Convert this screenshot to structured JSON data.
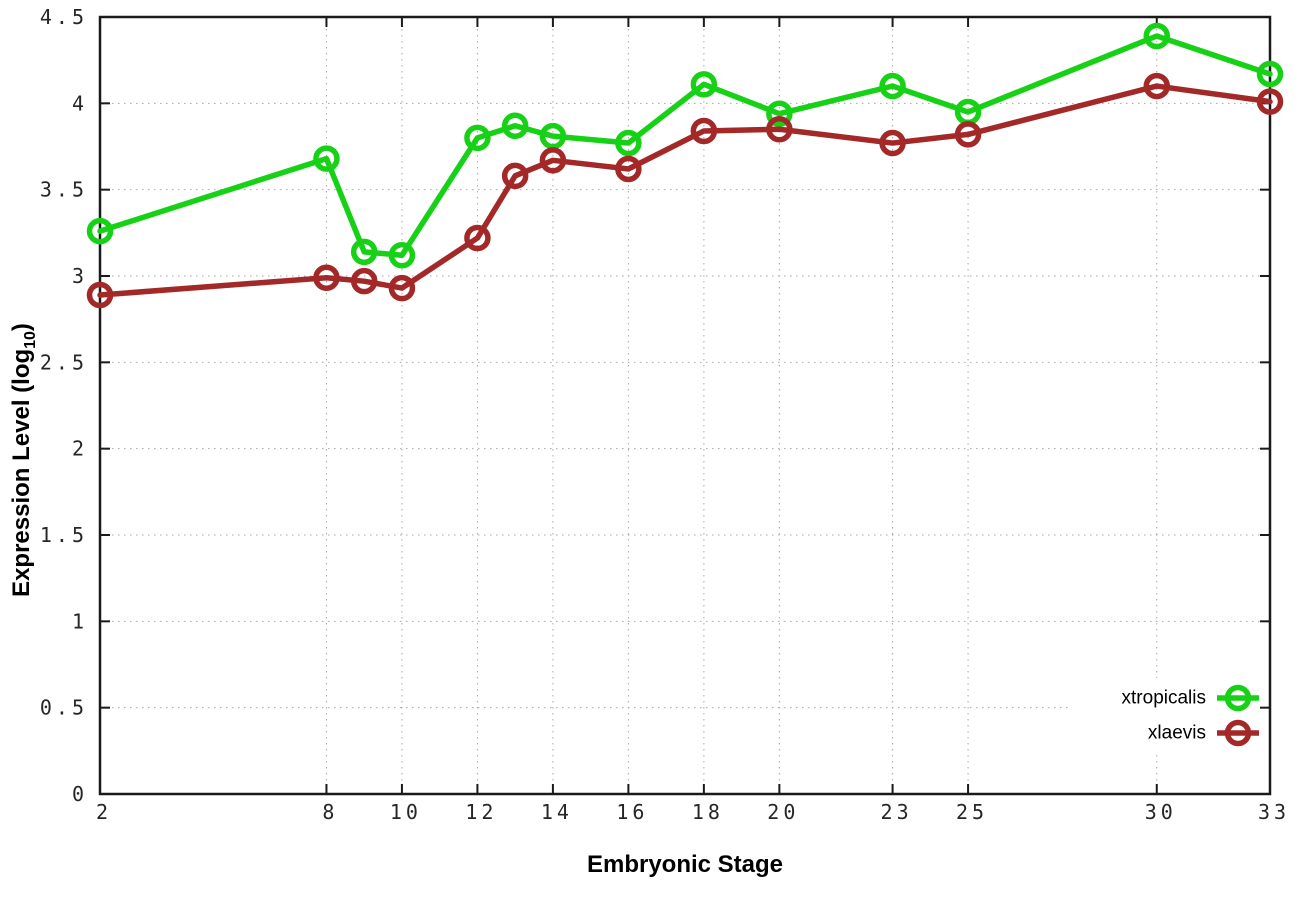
{
  "chart_data": {
    "type": "line",
    "title": "",
    "xlabel": "Embryonic Stage",
    "ylabel": "Expression Level (log10)",
    "ylabel_parts": {
      "prefix": "Expression Level (log",
      "sub": "10",
      "suffix": ")"
    },
    "xlim": [
      2,
      33
    ],
    "ylim": [
      0,
      4.5
    ],
    "xticks": [
      2,
      8,
      10,
      12,
      14,
      16,
      18,
      20,
      23,
      25,
      30,
      33
    ],
    "yticks": [
      0,
      0.5,
      1,
      1.5,
      2,
      2.5,
      3,
      3.5,
      4,
      4.5
    ],
    "grid": true,
    "legend_position": "bottom-right-inside",
    "x": [
      2,
      8,
      9,
      10,
      12,
      13,
      14,
      16,
      18,
      20,
      23,
      25,
      30,
      33
    ],
    "series": [
      {
        "name": "xtropicalis",
        "color": "#17d117",
        "values": [
          3.26,
          3.68,
          3.14,
          3.12,
          3.8,
          3.87,
          3.81,
          3.77,
          4.11,
          3.94,
          4.1,
          3.95,
          4.39,
          4.17
        ]
      },
      {
        "name": "xlaevis",
        "color": "#a32929",
        "values": [
          2.89,
          2.99,
          2.97,
          2.93,
          3.22,
          3.58,
          3.67,
          3.62,
          3.84,
          3.85,
          3.77,
          3.82,
          4.1,
          4.01
        ]
      }
    ],
    "colors": {
      "grid": "#a8a8a8",
      "axis": "#1a1a1a",
      "tick_label": "#262626"
    }
  }
}
